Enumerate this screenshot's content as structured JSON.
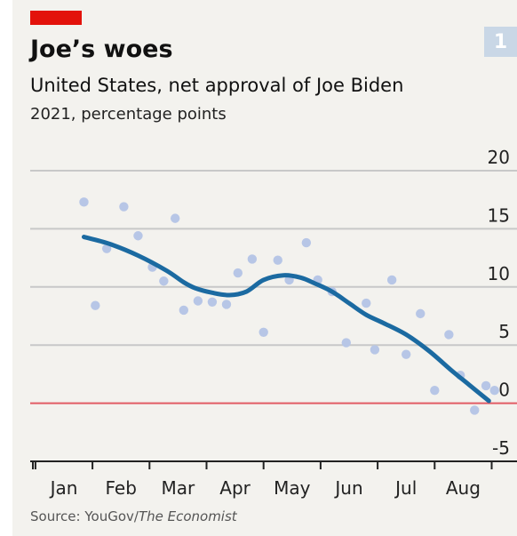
{
  "header": {
    "title": "Joe’s woes",
    "subtitle": "United States, net approval of Joe Biden",
    "unit": "2021, percentage points",
    "figure_number": "1"
  },
  "footer": {
    "source_prefix": "Source: YouGov/",
    "source_italic": "The Economist"
  },
  "colors": {
    "tag": "#e3120b",
    "trend": "#1b6aa1",
    "points": "#b7c6e6",
    "zero_line": "#e15b64",
    "grid": "#c8c8c8"
  },
  "chart_data": {
    "type": "scatter",
    "title": "Joe’s woes",
    "subtitle": "United States, net approval of Joe Biden",
    "ylabel": "2021, percentage points",
    "ylim": [
      -5,
      20
    ],
    "yticks": [
      20,
      15,
      10,
      5,
      0,
      -5
    ],
    "xlim": [
      -0.1,
      7.65
    ],
    "months": [
      "Jan",
      "Feb",
      "Mar",
      "Apr",
      "May",
      "Jun",
      "Jul",
      "Aug"
    ],
    "grid": true,
    "series": [
      {
        "kind": "points",
        "x": [
          0.35,
          0.55,
          0.75,
          1.05,
          1.3,
          1.55,
          1.75,
          1.95,
          2.1,
          2.35,
          2.6,
          2.85,
          3.05,
          3.3,
          3.5,
          3.75,
          3.95,
          4.25,
          4.45,
          4.7,
          4.95,
          5.3,
          5.45,
          5.75,
          6.0,
          6.25,
          6.5,
          6.75,
          6.95,
          7.2,
          7.4,
          7.55
        ],
        "y": [
          17.3,
          8.4,
          13.3,
          16.9,
          14.4,
          11.7,
          10.5,
          15.9,
          8.0,
          8.8,
          8.7,
          8.5,
          11.2,
          12.4,
          6.1,
          12.3,
          10.6,
          13.8,
          10.6,
          9.6,
          5.2,
          8.6,
          4.6,
          10.6,
          4.2,
          7.7,
          1.1,
          5.9,
          2.4,
          -0.6,
          1.5,
          1.1
        ]
      },
      {
        "kind": "trend",
        "x": [
          0.35,
          0.8,
          1.3,
          1.8,
          2.1,
          2.3,
          2.6,
          2.9,
          3.2,
          3.5,
          3.85,
          4.15,
          4.4,
          4.7,
          5.0,
          5.3,
          5.6,
          6.0,
          6.4,
          6.8,
          7.1,
          7.45
        ],
        "y": [
          14.3,
          13.7,
          12.7,
          11.4,
          10.4,
          9.9,
          9.5,
          9.3,
          9.6,
          10.6,
          11.0,
          10.8,
          10.3,
          9.6,
          8.6,
          7.6,
          6.9,
          5.9,
          4.5,
          2.8,
          1.6,
          0.2
        ]
      }
    ]
  }
}
